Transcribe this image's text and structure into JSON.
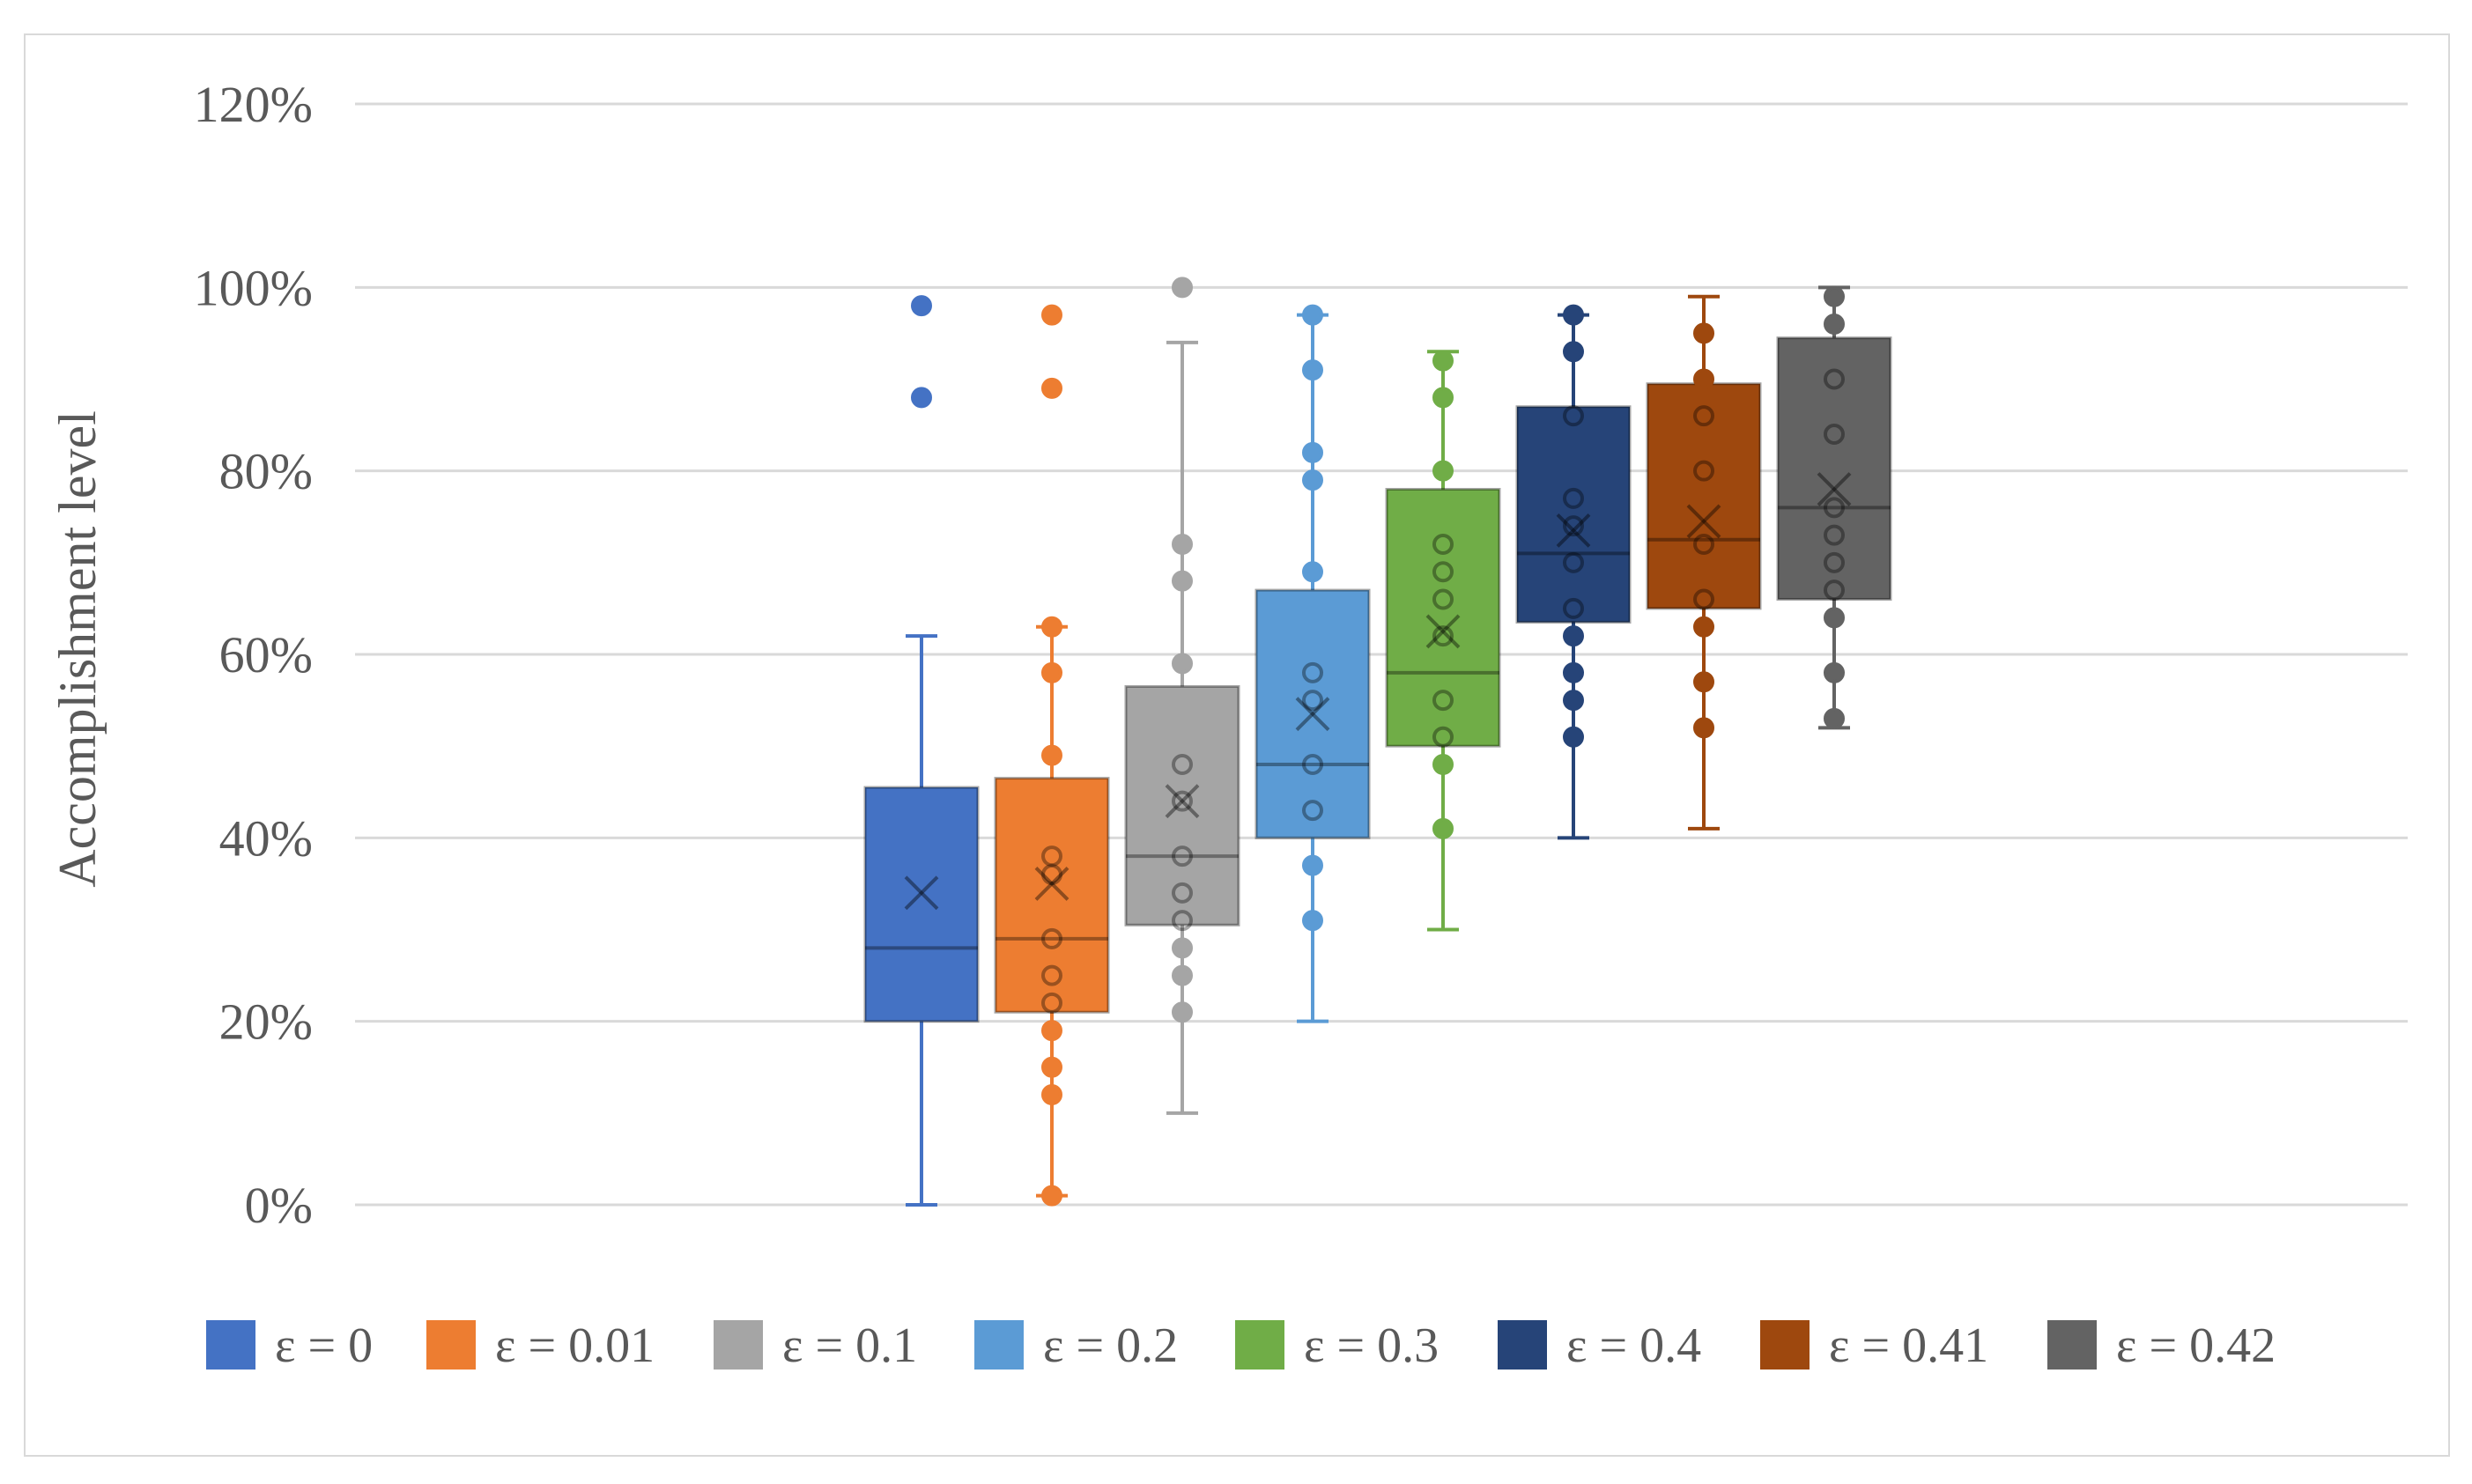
{
  "chart_data": {
    "type": "box",
    "title": "",
    "xlabel": "",
    "ylabel": "Accomplishment  level",
    "ylim": [
      0,
      1.2
    ],
    "y_ticks": [
      0,
      0.2,
      0.4,
      0.6,
      0.8,
      1.0,
      1.2
    ],
    "y_tick_labels": [
      "0%",
      "20%",
      "40%",
      "60%",
      "80%",
      "100%",
      "120%"
    ],
    "grid": true,
    "legend_position": "bottom",
    "series": [
      {
        "name": "ε = 0",
        "color": "#4472c4",
        "whisker_low": 0.0,
        "q1": 0.2,
        "median": 0.28,
        "q3": 0.455,
        "whisker_high": 0.62,
        "mean": 0.34,
        "points": [
          0.98,
          0.88
        ],
        "outliers": [
          0.98,
          0.88
        ]
      },
      {
        "name": "ε = 0.01",
        "color": "#ed7d31",
        "whisker_low": 0.01,
        "q1": 0.21,
        "median": 0.29,
        "q3": 0.465,
        "whisker_high": 0.63,
        "mean": 0.35,
        "points": [
          0.97,
          0.89,
          0.63,
          0.58,
          0.49,
          0.38,
          0.36,
          0.29,
          0.25,
          0.22,
          0.19,
          0.15,
          0.12,
          0.01
        ],
        "outliers": [
          0.97,
          0.89
        ]
      },
      {
        "name": "ε = 0.1",
        "color": "#a5a5a5",
        "whisker_low": 0.1,
        "q1": 0.305,
        "median": 0.38,
        "q3": 0.565,
        "whisker_high": 0.94,
        "mean": 0.44,
        "points": [
          1.0,
          0.72,
          0.68,
          0.59,
          0.48,
          0.44,
          0.38,
          0.34,
          0.31,
          0.28,
          0.25,
          0.21
        ],
        "outliers": [
          1.0
        ]
      },
      {
        "name": "ε = 0.2",
        "color": "#5b9bd5",
        "whisker_low": 0.2,
        "q1": 0.4,
        "median": 0.48,
        "q3": 0.67,
        "whisker_high": 0.97,
        "mean": 0.535,
        "points": [
          0.97,
          0.91,
          0.82,
          0.79,
          0.69,
          0.58,
          0.55,
          0.48,
          0.43,
          0.37,
          0.31
        ],
        "outliers": []
      },
      {
        "name": "ε = 0.3",
        "color": "#70ad47",
        "whisker_low": 0.3,
        "q1": 0.5,
        "median": 0.58,
        "q3": 0.78,
        "whisker_high": 0.93,
        "mean": 0.625,
        "points": [
          0.92,
          0.88,
          0.8,
          0.72,
          0.69,
          0.66,
          0.62,
          0.55,
          0.51,
          0.48,
          0.41
        ],
        "outliers": []
      },
      {
        "name": "ε = 0.4",
        "color": "#264478",
        "whisker_low": 0.4,
        "q1": 0.635,
        "median": 0.71,
        "q3": 0.87,
        "whisker_high": 0.97,
        "mean": 0.735,
        "points": [
          0.97,
          0.93,
          0.86,
          0.77,
          0.74,
          0.7,
          0.65,
          0.62,
          0.58,
          0.55,
          0.51
        ],
        "outliers": []
      },
      {
        "name": "ε = 0.41",
        "color": "#9e480e",
        "whisker_low": 0.41,
        "q1": 0.65,
        "median": 0.725,
        "q3": 0.895,
        "whisker_high": 0.99,
        "mean": 0.745,
        "points": [
          0.95,
          0.9,
          0.86,
          0.8,
          0.72,
          0.66,
          0.63,
          0.57,
          0.52
        ],
        "outliers": []
      },
      {
        "name": "ε = 0.42",
        "color": "#636363",
        "whisker_low": 0.52,
        "q1": 0.66,
        "median": 0.76,
        "q3": 0.945,
        "whisker_high": 1.0,
        "mean": 0.78,
        "points": [
          0.99,
          0.96,
          0.9,
          0.84,
          0.76,
          0.73,
          0.7,
          0.67,
          0.64,
          0.58,
          0.53
        ],
        "outliers": []
      }
    ]
  }
}
